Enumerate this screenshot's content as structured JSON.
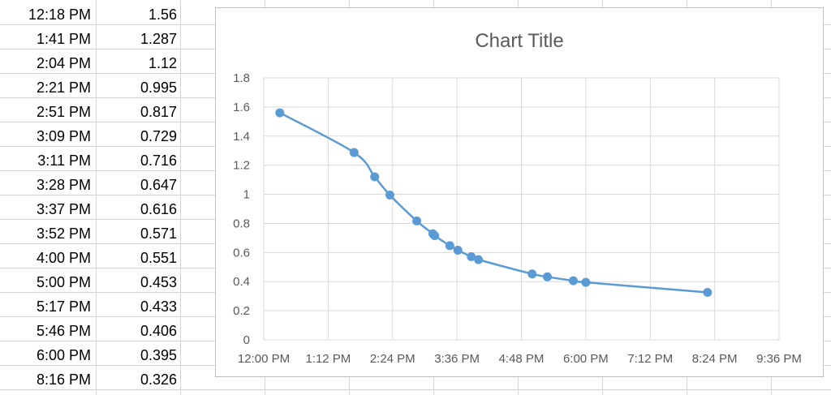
{
  "sheet": {
    "rows": [
      {
        "time": "12:18 PM",
        "value": "1.56"
      },
      {
        "time": "1:41 PM",
        "value": "1.287"
      },
      {
        "time": "2:04 PM",
        "value": "1.12"
      },
      {
        "time": "2:21 PM",
        "value": "0.995"
      },
      {
        "time": "2:51 PM",
        "value": "0.817"
      },
      {
        "time": "3:09 PM",
        "value": "0.729"
      },
      {
        "time": "3:11 PM",
        "value": "0.716"
      },
      {
        "time": "3:28 PM",
        "value": "0.647"
      },
      {
        "time": "3:37 PM",
        "value": "0.616"
      },
      {
        "time": "3:52 PM",
        "value": "0.571"
      },
      {
        "time": "4:00 PM",
        "value": "0.551"
      },
      {
        "time": "5:00 PM",
        "value": "0.453"
      },
      {
        "time": "5:17 PM",
        "value": "0.433"
      },
      {
        "time": "5:46 PM",
        "value": "0.406"
      },
      {
        "time": "6:00 PM",
        "value": "0.395"
      },
      {
        "time": "8:16 PM",
        "value": "0.326"
      }
    ]
  },
  "chart_data": {
    "type": "scatter",
    "title": "Chart Title",
    "line_style": "smoothed line with markers",
    "series_color": "#5b9bd5",
    "grid": true,
    "legend": "none",
    "xlim": [
      "12:00 PM",
      "9:36 PM"
    ],
    "ylim": [
      0,
      1.8
    ],
    "x_ticks": [
      "12:00 PM",
      "1:12 PM",
      "2:24 PM",
      "3:36 PM",
      "4:48 PM",
      "6:00 PM",
      "7:12 PM",
      "8:24 PM",
      "9:36 PM"
    ],
    "y_ticks": [
      "0",
      "0.2",
      "0.4",
      "0.6",
      "0.8",
      "1",
      "1.2",
      "1.4",
      "1.6",
      "1.8"
    ],
    "x": [
      "12:18 PM",
      "1:41 PM",
      "2:04 PM",
      "2:21 PM",
      "2:51 PM",
      "3:09 PM",
      "3:11 PM",
      "3:28 PM",
      "3:37 PM",
      "3:52 PM",
      "4:00 PM",
      "5:00 PM",
      "5:17 PM",
      "5:46 PM",
      "6:00 PM",
      "8:16 PM"
    ],
    "y": [
      1.56,
      1.287,
      1.12,
      0.995,
      0.817,
      0.729,
      0.716,
      0.647,
      0.616,
      0.571,
      0.551,
      0.453,
      0.433,
      0.406,
      0.395,
      0.326
    ]
  }
}
